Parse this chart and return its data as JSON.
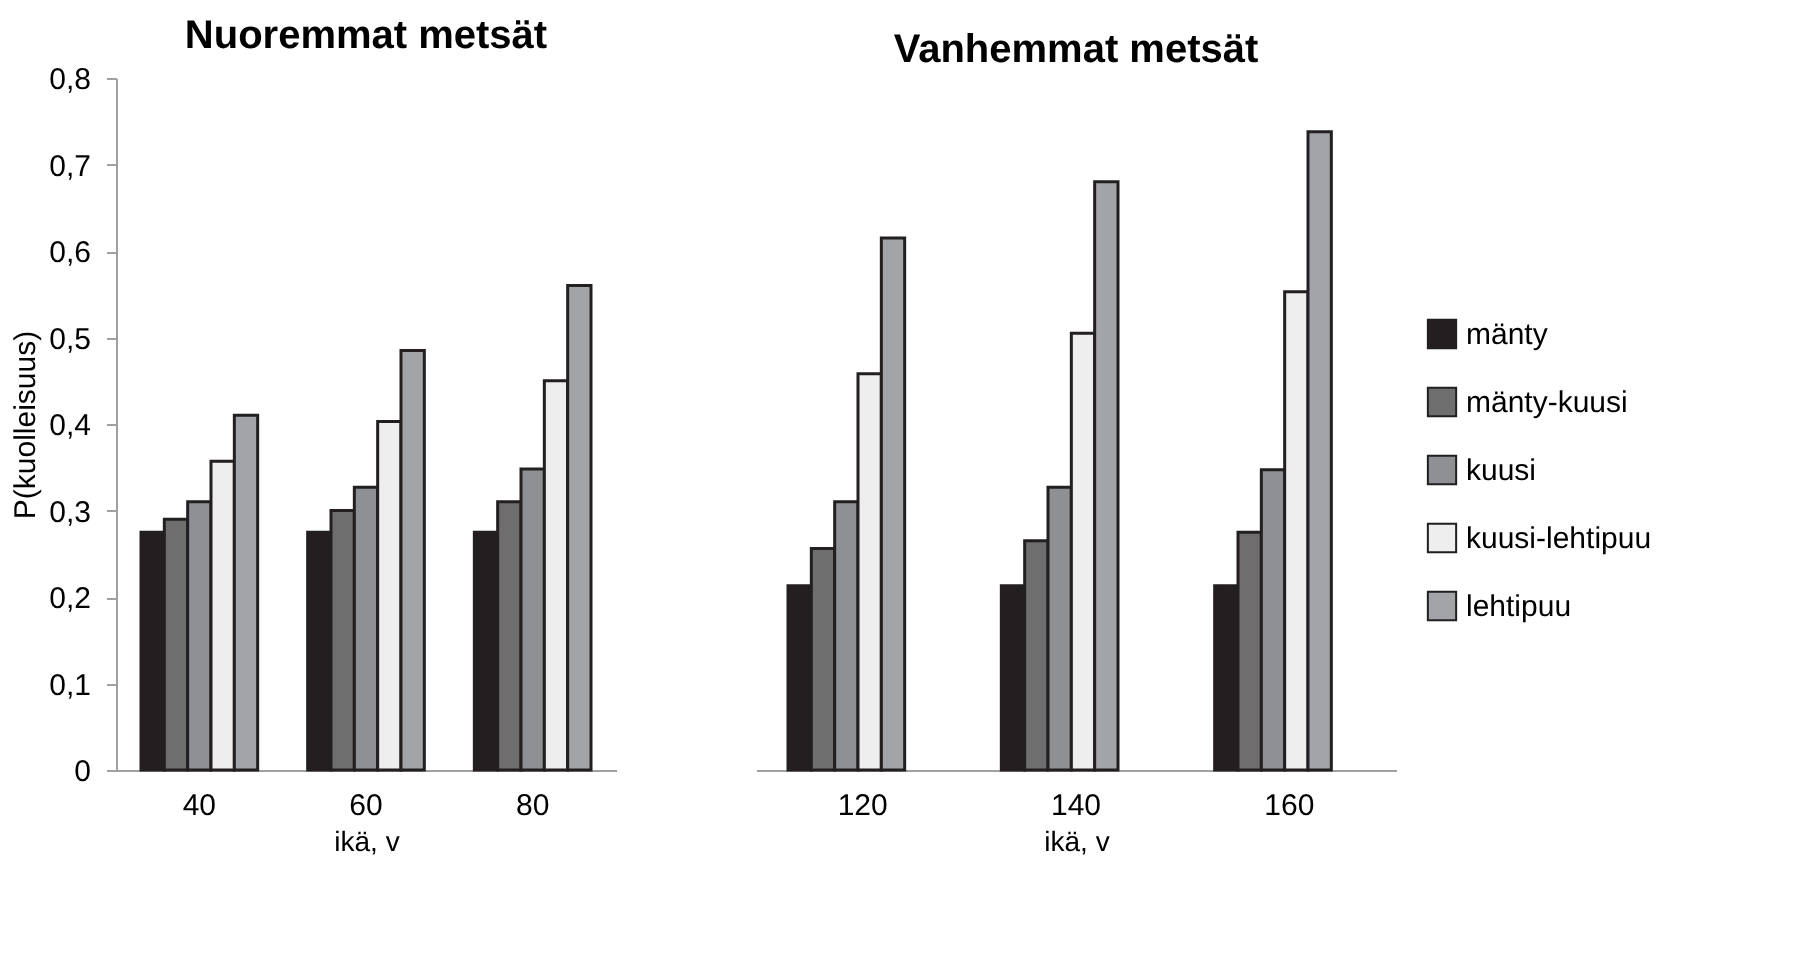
{
  "chart_data": [
    {
      "type": "bar",
      "title": "Nuoremmat metsät",
      "xlabel": "ikä, v",
      "ylabel": "P(kuolleisuus)",
      "categories": [
        "40",
        "60",
        "80"
      ],
      "ylim": [
        0,
        0.8
      ],
      "yticks": [
        0,
        {
          "value": 0.1,
          "label": "0,1"
        },
        {
          "value": 0.2,
          "label": "0,2"
        },
        {
          "value": 0.3,
          "label": "0,3"
        },
        {
          "value": 0.4,
          "label": "0,4"
        },
        {
          "value": 0.5,
          "label": "0,5"
        },
        {
          "value": 0.6,
          "label": "0,6"
        },
        {
          "value": 0.7,
          "label": "0,7"
        },
        {
          "value": 0.8,
          "label": "0,8"
        }
      ],
      "grid": false,
      "legend": false,
      "series": [
        {
          "color": "#231f20",
          "values": [
            0.275,
            0.275,
            0.275
          ]
        },
        {
          "color": "#6e6e6e",
          "values": [
            0.29,
            0.3,
            0.31
          ]
        },
        {
          "color": "#8e9094",
          "values": [
            0.31,
            0.327,
            0.348
          ]
        },
        {
          "color": "#eeeeee",
          "values": [
            0.357,
            0.403,
            0.45
          ]
        },
        {
          "color": "#a2a4a8",
          "values": [
            0.41,
            0.485,
            0.56
          ]
        }
      ]
    },
    {
      "type": "bar",
      "title": "Vanhemmat metsät",
      "xlabel": "ikä, v",
      "categories": [
        "120",
        "140",
        "160"
      ],
      "ylim": [
        0,
        0.8
      ],
      "tick_labels": "x",
      "grid": false,
      "legend": "right",
      "series": [
        {
          "name": "mänty",
          "color": "#231f20",
          "values": [
            0.213,
            0.213,
            0.213
          ]
        },
        {
          "name": "mänty-kuusi",
          "color": "#6e6e6e",
          "values": [
            0.256,
            0.265,
            0.275
          ]
        },
        {
          "name": "kuusi",
          "color": "#8e9094",
          "values": [
            0.31,
            0.327,
            0.347
          ]
        },
        {
          "name": "kuusi-lehtipuu",
          "color": "#eeeeee",
          "values": [
            0.458,
            0.505,
            0.553
          ]
        },
        {
          "name": "lehtipuu",
          "color": "#a2a4a8",
          "values": [
            0.615,
            0.68,
            0.738
          ]
        }
      ]
    }
  ]
}
